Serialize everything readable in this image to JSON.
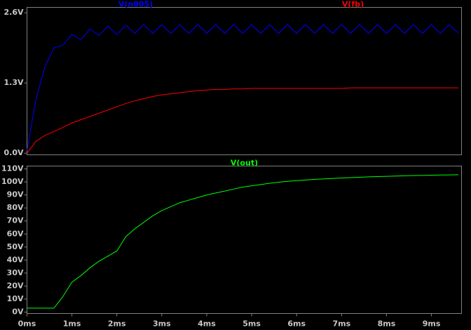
{
  "chart_data": [
    {
      "type": "line",
      "x": [
        0,
        0.2,
        0.4,
        0.6,
        0.8,
        1.0,
        1.2,
        1.4,
        1.6,
        1.8,
        2.0,
        2.2,
        2.4,
        2.6,
        2.8,
        3.0,
        3.2,
        3.4,
        3.6,
        3.8,
        4.0,
        4.2,
        4.4,
        4.6,
        4.8,
        5.0,
        5.2,
        5.4,
        5.6,
        5.8,
        6.0,
        6.2,
        6.4,
        6.6,
        6.8,
        7.0,
        7.2,
        7.4,
        7.6,
        7.8,
        8.0,
        8.2,
        8.4,
        8.6,
        8.8,
        9.0,
        9.2,
        9.4,
        9.6
      ],
      "xlim": [
        0,
        9.67
      ],
      "ylim": [
        -0.03,
        2.7
      ],
      "yticks": [
        {
          "value": 0,
          "label": "0.0V"
        },
        {
          "value": 1.3,
          "label": "1.3V"
        },
        {
          "value": 2.6,
          "label": "2.6V"
        }
      ],
      "series": [
        {
          "name": "V(n005)",
          "color": "#0000ff",
          "values": [
            0.05,
            1.0,
            1.6,
            1.95,
            2.0,
            2.2,
            2.1,
            2.3,
            2.18,
            2.35,
            2.2,
            2.37,
            2.22,
            2.38,
            2.22,
            2.38,
            2.22,
            2.38,
            2.22,
            2.38,
            2.22,
            2.38,
            2.22,
            2.38,
            2.22,
            2.38,
            2.22,
            2.38,
            2.22,
            2.38,
            2.22,
            2.38,
            2.22,
            2.38,
            2.22,
            2.38,
            2.22,
            2.38,
            2.22,
            2.38,
            2.22,
            2.38,
            2.22,
            2.38,
            2.22,
            2.38,
            2.22,
            2.38,
            2.22
          ]
        },
        {
          "name": "V(fb)",
          "color": "#ff0000",
          "values": [
            0,
            0.22,
            0.33,
            0.4,
            0.48,
            0.56,
            0.62,
            0.68,
            0.74,
            0.8,
            0.86,
            0.92,
            0.97,
            1.01,
            1.05,
            1.08,
            1.1,
            1.12,
            1.14,
            1.16,
            1.17,
            1.18,
            1.18,
            1.19,
            1.19,
            1.2,
            1.2,
            1.2,
            1.2,
            1.2,
            1.2,
            1.2,
            1.2,
            1.2,
            1.2,
            1.2,
            1.21,
            1.21,
            1.21,
            1.21,
            1.21,
            1.21,
            1.21,
            1.21,
            1.21,
            1.21,
            1.21,
            1.21,
            1.21
          ]
        }
      ]
    },
    {
      "type": "line",
      "x": [
        0,
        0.2,
        0.4,
        0.6,
        0.8,
        1.0,
        1.2,
        1.4,
        1.6,
        1.8,
        2.0,
        2.2,
        2.4,
        2.6,
        2.8,
        3.0,
        3.2,
        3.4,
        3.6,
        3.8,
        4.0,
        4.2,
        4.4,
        4.6,
        4.8,
        5.0,
        5.2,
        5.4,
        5.6,
        5.8,
        6.0,
        6.2,
        6.4,
        6.6,
        6.8,
        7.0,
        7.2,
        7.4,
        7.6,
        7.8,
        8.0,
        8.2,
        8.4,
        8.6,
        8.8,
        9.0,
        9.2,
        9.4,
        9.6
      ],
      "xlim": [
        0,
        9.67
      ],
      "xticks": [
        {
          "value": 0,
          "label": "0ms"
        },
        {
          "value": 1,
          "label": "1ms"
        },
        {
          "value": 2,
          "label": "2ms"
        },
        {
          "value": 3,
          "label": "3ms"
        },
        {
          "value": 4,
          "label": "4ms"
        },
        {
          "value": 5,
          "label": "5ms"
        },
        {
          "value": 6,
          "label": "6ms"
        },
        {
          "value": 7,
          "label": "7ms"
        },
        {
          "value": 8,
          "label": "8ms"
        },
        {
          "value": 9,
          "label": "9ms"
        }
      ],
      "ylim": [
        -1.1,
        112.2
      ],
      "yticks": [
        {
          "value": 0,
          "label": "0V"
        },
        {
          "value": 10,
          "label": "10V"
        },
        {
          "value": 20,
          "label": "20V"
        },
        {
          "value": 30,
          "label": "30V"
        },
        {
          "value": 40,
          "label": "40V"
        },
        {
          "value": 50,
          "label": "50V"
        },
        {
          "value": 60,
          "label": "60V"
        },
        {
          "value": 70,
          "label": "70V"
        },
        {
          "value": 80,
          "label": "80V"
        },
        {
          "value": 90,
          "label": "90V"
        },
        {
          "value": 100,
          "label": "100V"
        },
        {
          "value": 110,
          "label": "110V"
        }
      ],
      "series": [
        {
          "name": "V(out)",
          "color": "#00ff00",
          "values": [
            3,
            3,
            3,
            3,
            12,
            23,
            28,
            34,
            39,
            43,
            47,
            58,
            64,
            69,
            74,
            78,
            81,
            84,
            86,
            88,
            90,
            91.5,
            93,
            94.5,
            96,
            97,
            98,
            99,
            99.8,
            100.5,
            101,
            101.5,
            102,
            102.3,
            102.7,
            103,
            103.3,
            103.6,
            103.9,
            104.1,
            104.3,
            104.5,
            104.7,
            104.9,
            105,
            105.2,
            105.3,
            105.4,
            105.5
          ]
        }
      ]
    }
  ]
}
